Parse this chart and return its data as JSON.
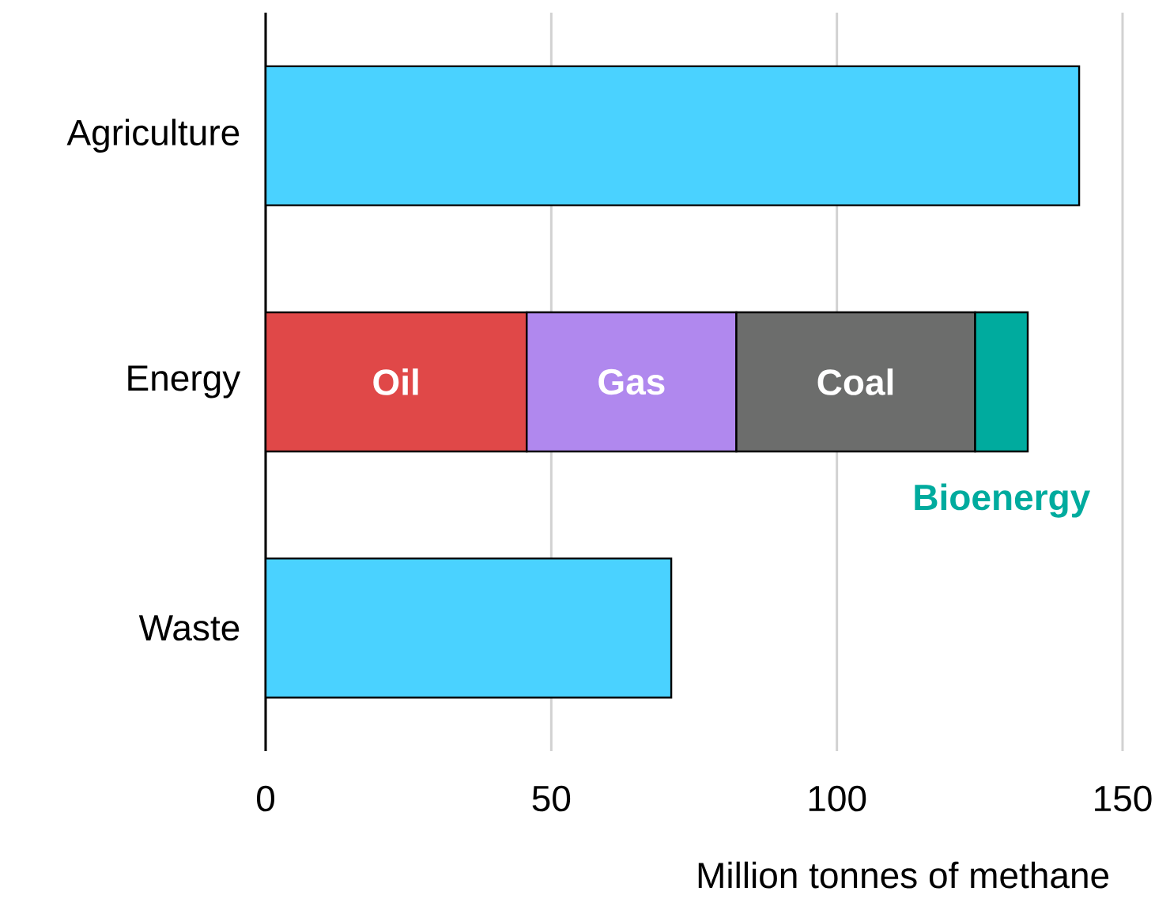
{
  "chart_data": {
    "type": "bar",
    "orientation": "horizontal",
    "stacked": true,
    "categories": [
      "Agriculture",
      "Energy",
      "Waste"
    ],
    "xlabel": "Million tonnes of methane",
    "xlim": [
      0,
      150
    ],
    "xticks": [
      0,
      50,
      100,
      150
    ],
    "grid": "x",
    "series": [
      {
        "color": "#4ad2ff",
        "values": [
          142.4,
          null,
          71.0
        ]
      },
      {
        "name": "Oil",
        "color": "#e04848",
        "values": [
          null,
          45.7,
          null
        ]
      },
      {
        "name": "Gas",
        "color": "#b088ee",
        "values": [
          null,
          36.7,
          null
        ]
      },
      {
        "name": "Coal",
        "color": "#6c6d6c",
        "values": [
          null,
          41.8,
          null
        ]
      },
      {
        "name": "Bioenergy",
        "color": "#00ab9e",
        "values": [
          null,
          9.2,
          null
        ]
      }
    ]
  }
}
